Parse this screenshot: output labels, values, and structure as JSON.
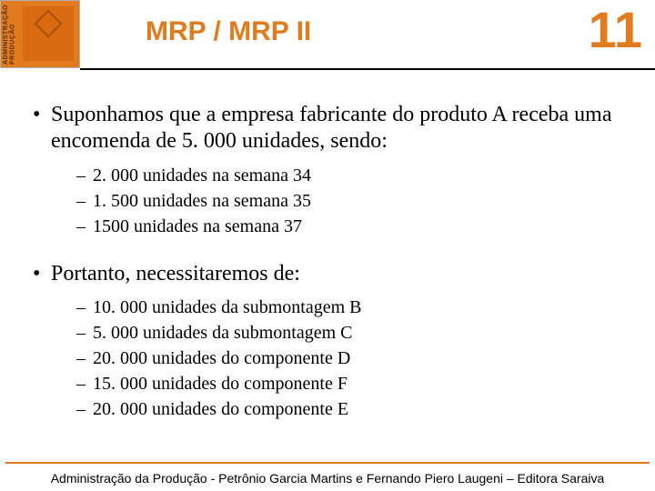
{
  "colors": {
    "accent": "#e07b1f",
    "text": "#000000",
    "background": "#ffffff"
  },
  "header": {
    "title": "MRP / MRP II",
    "slide_number": "11",
    "book_spine": "ADMINISTRAÇÃO\nDA PRODUÇÃO"
  },
  "content": {
    "bullets": [
      {
        "text": "Suponhamos que a empresa fabricante do produto A receba uma encomenda de 5. 000 unidades, sendo:",
        "sub": [
          "2. 000 unidades na semana 34",
          "1. 500 unidades na semana 35",
          "1500 unidades na semana 37"
        ]
      },
      {
        "text": "Portanto, necessitaremos de:",
        "sub": [
          "10. 000 unidades da submontagem B",
          "5. 000 unidades da submontagem C",
          "20. 000 unidades do componente D",
          "15. 000 unidades do componente F",
          "20. 000 unidades do componente E"
        ]
      }
    ]
  },
  "footer": {
    "text": "Administração da Produção - Petrônio Garcia Martins e Fernando Piero Laugeni – Editora Saraiva"
  },
  "typography": {
    "title_fontsize": 30,
    "number_fontsize": 56,
    "body_fontsize": 24,
    "sub_fontsize": 20,
    "footer_fontsize": 14
  }
}
